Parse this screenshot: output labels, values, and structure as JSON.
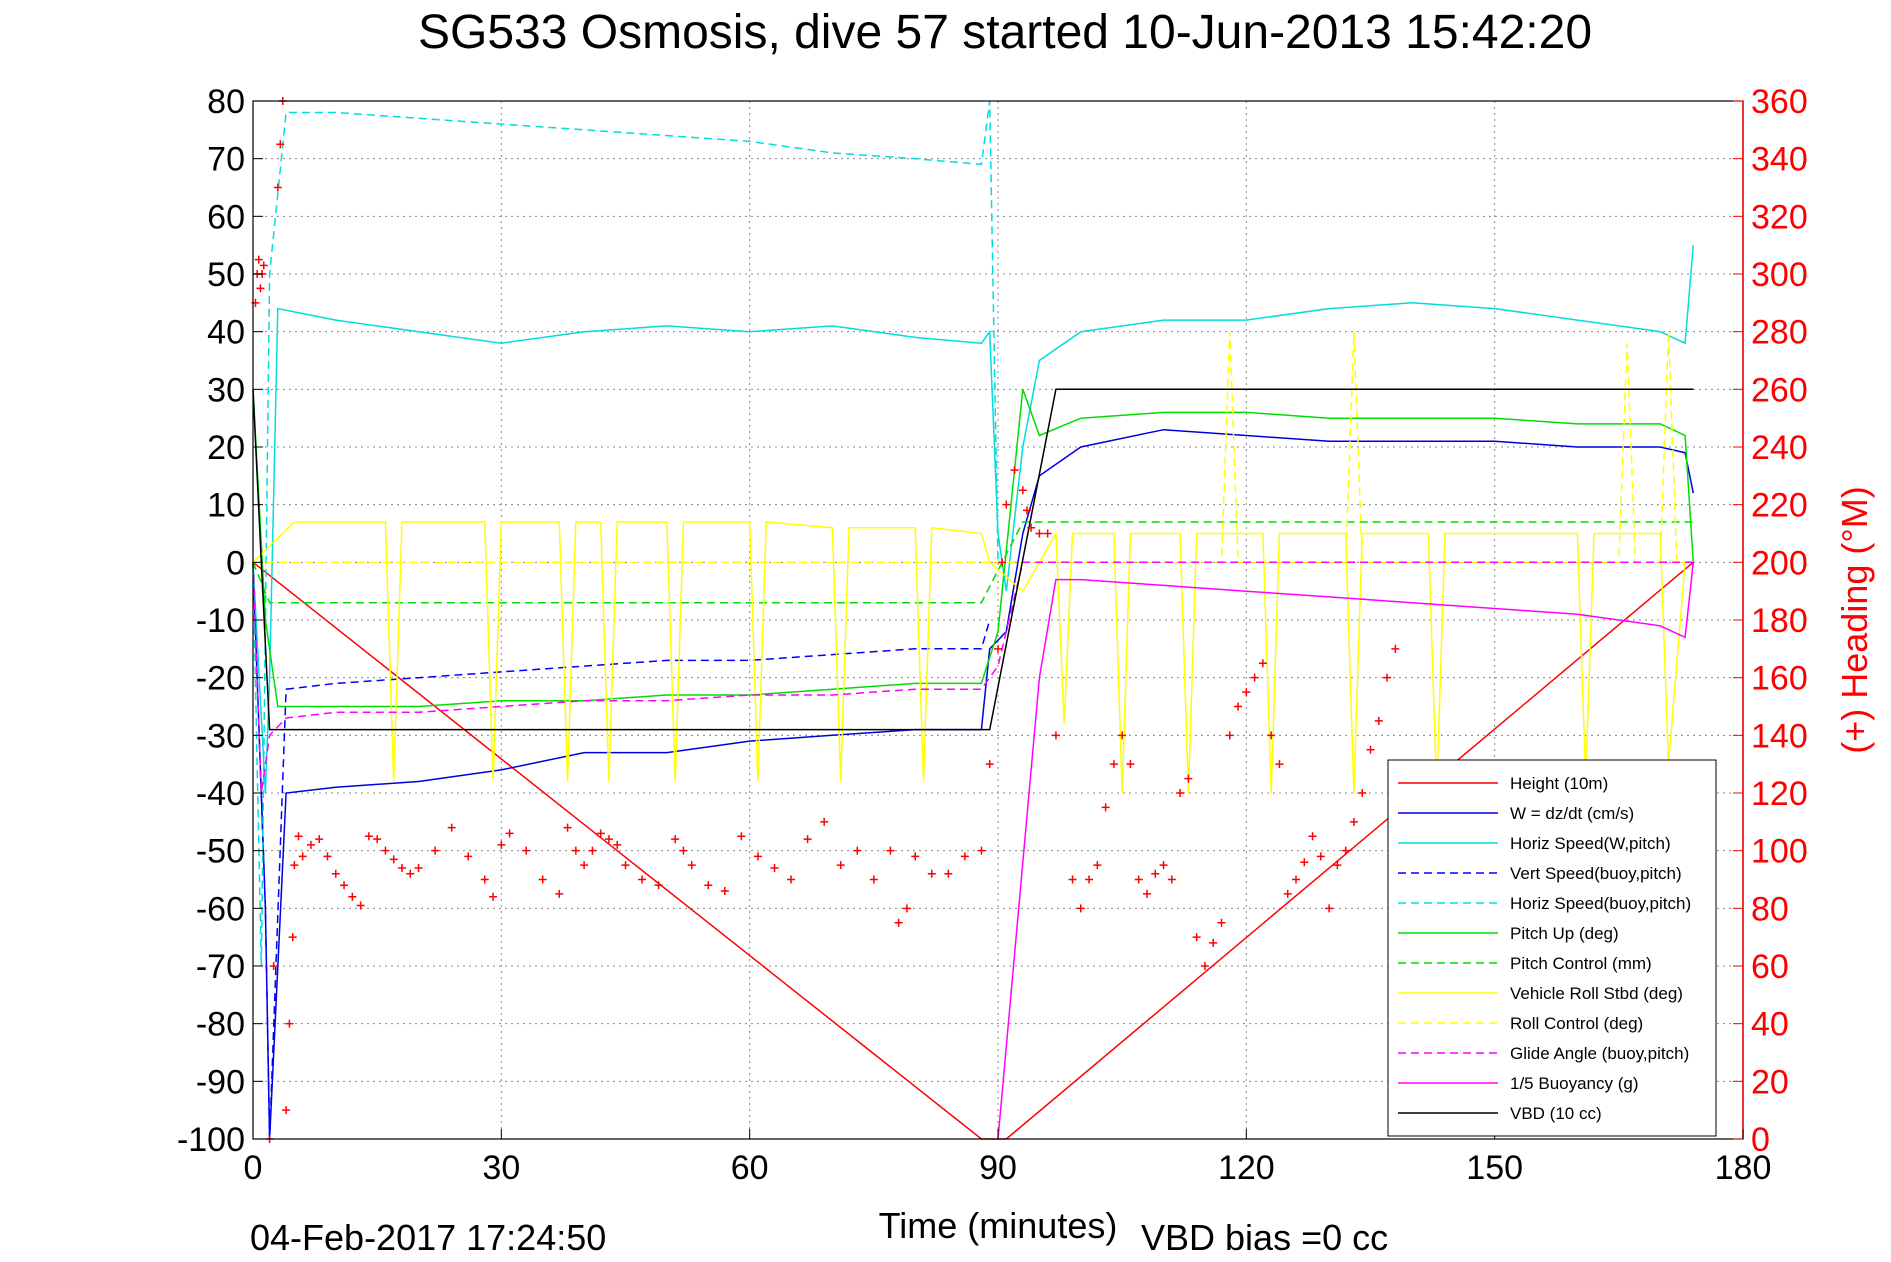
{
  "chart_data": {
    "type": "line",
    "title": "SG533 Osmosis, dive 57 started 10-Jun-2013 15:42:20",
    "xlabel": "Time (minutes)",
    "ylabel_right": "(+) Heading (°M)",
    "footer_left": "04-Feb-2017 17:24:50",
    "footer_right": "VBD bias =0 cc",
    "xlim": [
      0,
      180
    ],
    "ylim": [
      -100,
      80
    ],
    "ylim_right": [
      0,
      360
    ],
    "xticks": [
      0,
      30,
      60,
      90,
      120,
      150,
      180
    ],
    "yticks": [
      80,
      70,
      60,
      50,
      40,
      30,
      20,
      10,
      0,
      -10,
      -20,
      -30,
      -40,
      -50,
      -60,
      -70,
      -80,
      -90,
      -100
    ],
    "yticks_right": [
      360,
      340,
      320,
      300,
      280,
      260,
      240,
      220,
      200,
      180,
      160,
      140,
      120,
      100,
      80,
      60,
      40,
      20,
      0
    ],
    "grid": true,
    "legend_position": "bottom-right",
    "colors": {
      "axis_right": "#ff0000",
      "legend_border": "#000000"
    },
    "series": [
      {
        "name": "Height (10m)",
        "color": "#ff0000",
        "dash": "solid",
        "x": [
          0,
          88,
          91,
          174
        ],
        "y": [
          0,
          -100,
          -100,
          0
        ]
      },
      {
        "name": "W = dz/dt (cm/s)",
        "color": "#0000dd",
        "dash": "solid",
        "x": [
          0,
          1.5,
          2,
          4,
          10,
          20,
          30,
          40,
          50,
          60,
          70,
          80,
          88,
          89,
          91,
          93,
          95,
          100,
          110,
          120,
          130,
          140,
          150,
          160,
          170,
          173,
          174
        ],
        "y": [
          0,
          -60,
          -100,
          -40,
          -39,
          -38,
          -36,
          -33,
          -33,
          -31,
          -30,
          -29,
          -29,
          -15,
          -12,
          5,
          15,
          20,
          23,
          22,
          21,
          21,
          21,
          20,
          20,
          19,
          12
        ]
      },
      {
        "name": "Horiz Speed(W,pitch)",
        "color": "#00dddd",
        "dash": "solid",
        "x": [
          0,
          1.5,
          2,
          3,
          10,
          20,
          30,
          40,
          50,
          60,
          70,
          80,
          88,
          89,
          90,
          91,
          93,
          95,
          100,
          110,
          120,
          130,
          140,
          150,
          160,
          170,
          173,
          174
        ],
        "y": [
          0,
          -40,
          -20,
          44,
          42,
          40,
          38,
          40,
          41,
          40,
          41,
          39,
          38,
          40,
          5,
          -5,
          20,
          35,
          40,
          42,
          42,
          44,
          45,
          44,
          42,
          40,
          38,
          55
        ]
      },
      {
        "name": "Vert Speed(buoy,pitch)",
        "color": "#0000ff",
        "dash": "dashed",
        "x": [
          0,
          1.5,
          2,
          4,
          10,
          20,
          30,
          40,
          50,
          60,
          70,
          80,
          88,
          89
        ],
        "y": [
          0,
          -60,
          -100,
          -22,
          -21,
          -20,
          -19,
          -18,
          -17,
          -17,
          -16,
          -15,
          -15,
          -10
        ]
      },
      {
        "name": "Horiz Speed(buoy,pitch)",
        "color": "#00dddd",
        "dash": "dashed",
        "x": [
          0,
          1,
          2,
          4,
          10,
          20,
          30,
          40,
          50,
          60,
          70,
          80,
          88,
          89,
          90
        ],
        "y": [
          0,
          -70,
          50,
          78,
          78,
          77,
          76,
          75,
          74,
          73,
          71,
          70,
          69,
          80,
          0
        ]
      },
      {
        "name": "Pitch Up (deg)",
        "color": "#00dd00",
        "dash": "solid",
        "x": [
          0,
          1.5,
          3,
          10,
          20,
          30,
          40,
          50,
          60,
          70,
          80,
          88,
          90,
          93,
          95,
          100,
          110,
          120,
          130,
          140,
          150,
          160,
          170,
          173,
          174
        ],
        "y": [
          30,
          -10,
          -25,
          -25,
          -25,
          -24,
          -24,
          -23,
          -23,
          -22,
          -21,
          -21,
          -12,
          30,
          22,
          25,
          26,
          26,
          25,
          25,
          25,
          24,
          24,
          22,
          0
        ]
      },
      {
        "name": "Pitch Control (mm)",
        "color": "#00dd00",
        "dash": "dashed",
        "x": [
          0,
          2,
          88,
          93,
          174
        ],
        "y": [
          0,
          -7,
          -7,
          7,
          7
        ]
      },
      {
        "name": "Vehicle Roll Stbd (deg)",
        "color": "#ffff00",
        "dash": "solid",
        "x": [
          0,
          5,
          6,
          16,
          17,
          18,
          28,
          29,
          30,
          37,
          38,
          39,
          42,
          43,
          44,
          50,
          51,
          52,
          60,
          61,
          62,
          70,
          71,
          72,
          80,
          81,
          82,
          88,
          89,
          93,
          97,
          98,
          99,
          104,
          105,
          106,
          112,
          113,
          114,
          122,
          123,
          124,
          132,
          133,
          134,
          142,
          143,
          144,
          160,
          161,
          162,
          170,
          171,
          173
        ],
        "y": [
          0,
          7,
          7,
          7,
          -38,
          7,
          7,
          -38,
          7,
          7,
          -38,
          7,
          7,
          -38,
          7,
          7,
          -38,
          7,
          7,
          -38,
          7,
          6,
          -38,
          6,
          6,
          -38,
          6,
          5,
          0,
          -5,
          5,
          -28,
          5,
          5,
          -40,
          5,
          5,
          -40,
          5,
          5,
          -40,
          5,
          5,
          -40,
          5,
          5,
          -40,
          5,
          5,
          -38,
          5,
          5,
          -35,
          0
        ]
      },
      {
        "name": "Roll Control (deg)",
        "color": "#ffff00",
        "dash": "dashed",
        "x": [
          0,
          117,
          118,
          119,
          132,
          133,
          134,
          165,
          166,
          167,
          170,
          171,
          172,
          174
        ],
        "y": [
          0,
          0,
          40,
          0,
          0,
          40,
          0,
          0,
          38,
          0,
          0,
          40,
          0,
          0
        ]
      },
      {
        "name": "Glide Angle (buoy,pitch)",
        "color": "#ff00ff",
        "dash": "dashed",
        "x": [
          0,
          1,
          2,
          4,
          10,
          20,
          30,
          40,
          50,
          60,
          70,
          80,
          88,
          90,
          93,
          174
        ],
        "y": [
          0,
          -40,
          -30,
          -27,
          -26,
          -26,
          -25,
          -24,
          -24,
          -23,
          -23,
          -22,
          -22,
          -18,
          0,
          0
        ]
      },
      {
        "name": "1/5 Buoyancy (g)",
        "color": "#ff00ff",
        "dash": "solid",
        "x": [
          90,
          95,
          97,
          100,
          110,
          120,
          130,
          140,
          150,
          160,
          170,
          173,
          174
        ],
        "y": [
          -100,
          -20,
          -3,
          -3,
          -4,
          -5,
          -6,
          -7,
          -8,
          -9,
          -11,
          -13,
          0
        ]
      },
      {
        "name": "VBD (10 cc)",
        "color": "#000000",
        "dash": "solid",
        "x": [
          0,
          1,
          2,
          88,
          89,
          97,
          174
        ],
        "y": [
          30,
          0,
          -29,
          -29,
          -29,
          30,
          30
        ]
      }
    ],
    "heading_points": {
      "name": "(+) Heading",
      "axis": "right",
      "color": "#ff0000",
      "x": [
        0.3,
        0.5,
        0.7,
        0.9,
        1.1,
        1.3,
        2,
        2.5,
        3,
        3.3,
        3.6,
        4,
        4.4,
        4.8,
        5,
        5.5,
        6,
        7,
        8,
        9,
        10,
        11,
        12,
        13,
        14,
        15,
        16,
        17,
        18,
        19,
        20,
        22,
        24,
        26,
        28,
        29,
        30,
        31,
        33,
        35,
        37,
        38,
        39,
        40,
        41,
        42,
        43,
        44,
        45,
        47,
        49,
        51,
        52,
        53,
        55,
        57,
        59,
        61,
        63,
        65,
        67,
        69,
        71,
        73,
        75,
        77,
        78,
        79,
        80,
        82,
        84,
        86,
        88,
        89,
        90,
        90.5,
        91,
        92,
        93,
        93.5,
        94,
        95,
        96,
        97,
        99,
        100,
        101,
        102,
        103,
        104,
        105,
        106,
        107,
        108,
        109,
        110,
        111,
        112,
        113,
        114,
        115,
        116,
        117,
        118,
        119,
        120,
        121,
        122,
        123,
        124,
        125,
        126,
        127,
        128,
        129,
        130,
        131,
        132,
        133,
        134,
        135,
        136,
        137,
        138
      ],
      "y": [
        290,
        300,
        305,
        295,
        300,
        303,
        0,
        60,
        330,
        345,
        360,
        10,
        40,
        70,
        95,
        105,
        98,
        102,
        104,
        98,
        92,
        88,
        84,
        81,
        105,
        104,
        100,
        97,
        94,
        92,
        94,
        100,
        108,
        98,
        90,
        84,
        102,
        106,
        100,
        90,
        85,
        108,
        100,
        95,
        100,
        106,
        104,
        102,
        95,
        90,
        88,
        104,
        100,
        95,
        88,
        86,
        105,
        98,
        94,
        90,
        104,
        110,
        95,
        100,
        90,
        100,
        75,
        80,
        98,
        92,
        92,
        98,
        100,
        130,
        170,
        200,
        220,
        232,
        225,
        218,
        212,
        210,
        210,
        140,
        90,
        80,
        90,
        95,
        115,
        130,
        140,
        130,
        90,
        85,
        92,
        95,
        90,
        120,
        125,
        70,
        60,
        68,
        75,
        140,
        150,
        155,
        160,
        165,
        140,
        130,
        85,
        90,
        96,
        105,
        98,
        80,
        95,
        100,
        110,
        120,
        135,
        145,
        160,
        170
      ]
    }
  }
}
